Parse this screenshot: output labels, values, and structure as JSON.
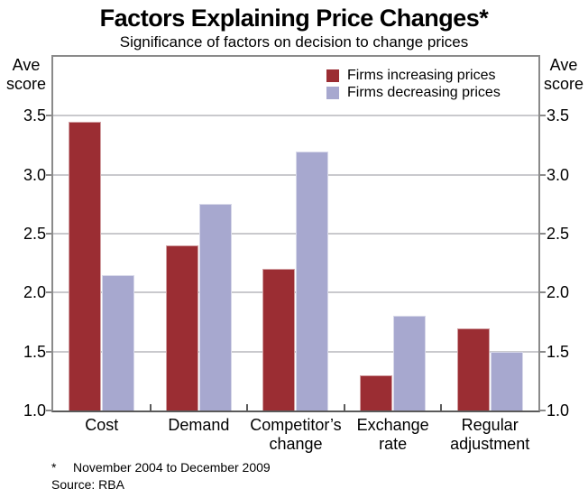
{
  "title": "Factors Explaining Price Changes*",
  "subtitle": "Significance of factors on decision to change prices",
  "y_axis_unit": "Ave\nscore",
  "footnote": {
    "marker": "*",
    "text": "November 2004 to December 2009",
    "source": "Source: RBA"
  },
  "colors": {
    "background": "#ffffff",
    "text": "#000000",
    "grid": "#c9c9cd",
    "frame": "#8a8a8a",
    "axis": "#5a5a5a",
    "increasing": "#9b2d33",
    "decreasing": "#a7a8cf"
  },
  "chart_data": {
    "type": "bar",
    "title": "Factors Explaining Price Changes*",
    "subtitle": "Significance of factors on decision to change prices",
    "categories": [
      "Cost",
      "Demand",
      "Competitor’s\nchange",
      "Exchange\nrate",
      "Regular\nadjustment"
    ],
    "series": [
      {
        "name": "Firms increasing prices",
        "color": "#9b2d33",
        "values": [
          3.45,
          2.4,
          2.2,
          1.3,
          1.7
        ]
      },
      {
        "name": "Firms decreasing prices",
        "color": "#a7a8cf",
        "values": [
          2.15,
          2.75,
          3.2,
          1.8,
          1.5
        ]
      }
    ],
    "ylabel": "Ave score",
    "ylim": [
      1.0,
      4.0
    ],
    "yticks": [
      1.0,
      1.5,
      2.0,
      2.5,
      3.0,
      3.5
    ],
    "ytick_format_decimals": 1,
    "grid": true,
    "legend_position": "top-right"
  }
}
